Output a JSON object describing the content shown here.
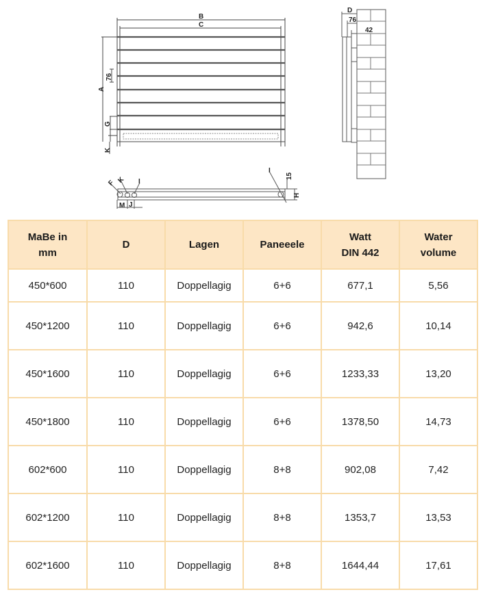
{
  "drawing": {
    "front_labels": {
      "B": "B",
      "C": "C",
      "A": "A",
      "pitch": "76",
      "G": "G",
      "K": "K"
    },
    "side_labels": {
      "D": "D",
      "depth": "76",
      "wall": "42"
    },
    "bottom_labels": {
      "F": "F",
      "K": "K",
      "I_left": "I",
      "I_right": "I",
      "offset": "15",
      "H": "H",
      "M": "M",
      "J": "J"
    }
  },
  "table": {
    "headers": [
      "MaBe in mm",
      "D",
      "Lagen",
      "Paneeele",
      "Watt DIN 442",
      "Water volume"
    ],
    "rows": [
      [
        "450*600",
        "110",
        "Doppellagig",
        "6+6",
        "677,1",
        "5,56"
      ],
      [
        "450*1200",
        "110",
        "Doppellagig",
        "6+6",
        "942,6",
        "10,14"
      ],
      [
        "450*1600",
        "110",
        "Doppellagig",
        "6+6",
        "1233,33",
        "13,20"
      ],
      [
        "450*1800",
        "110",
        "Doppellagig",
        "6+6",
        "1378,50",
        "14,73"
      ],
      [
        "602*600",
        "110",
        "Doppellagig",
        "8+8",
        "902,08",
        "7,42"
      ],
      [
        "602*1200",
        "110",
        "Doppellagig",
        "8+8",
        "1353,7",
        "13,53"
      ],
      [
        "602*1600",
        "110",
        "Doppellagig",
        "8+8",
        "1644,44",
        "17,61"
      ]
    ]
  },
  "colors": {
    "header_bg": "#fde6c5",
    "border": "#f8dba9"
  }
}
